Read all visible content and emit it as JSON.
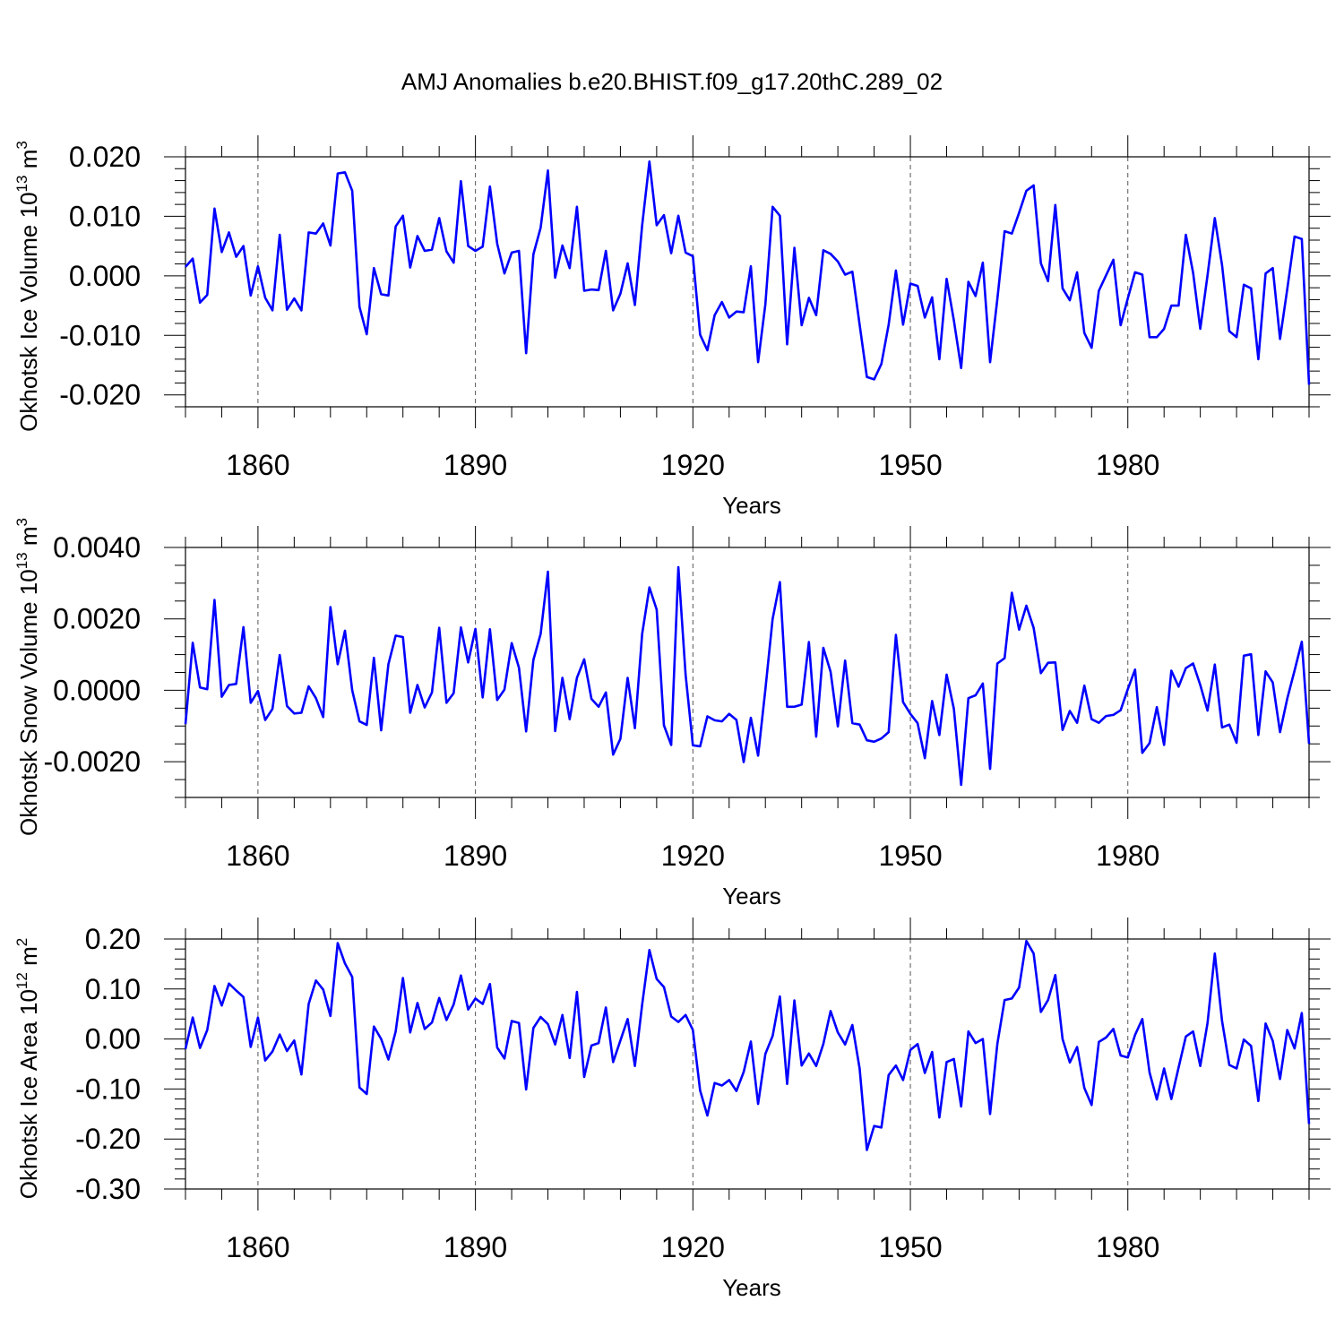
{
  "title": "AMJ Anomalies b.e20.BHIST.f09_g17.20thC.289_02",
  "series_color": "#0000ff",
  "chart_data": [
    {
      "type": "line",
      "name": "Okhotsk Ice Volume",
      "ylabel_main": "Okhotsk Ice Volume 10",
      "ylabel_exp": "13",
      "ylabel_unit": " m",
      "ylabel_unit_exp": "3",
      "xlabel": "Years",
      "xlim": [
        1850,
        2005
      ],
      "ylim": [
        -0.022,
        0.02
      ],
      "yticks": [
        0.02,
        0.01,
        0.0,
        -0.01,
        -0.02
      ],
      "yticklabels": [
        "0.020",
        "0.010",
        "0.000",
        "-0.010",
        "-0.020"
      ],
      "yminor": 0.002,
      "xticks": [
        1860,
        1890,
        1920,
        1950,
        1980
      ],
      "xticklabels": [
        "1860",
        "1890",
        "1920",
        "1950",
        "1980"
      ],
      "x_start": 1850,
      "values": [
        0.0015,
        0.0029,
        -0.0045,
        -0.0032,
        0.0113,
        0.004,
        0.0073,
        0.0032,
        0.005,
        -0.0033,
        0.0016,
        -0.0037,
        -0.0058,
        0.0069,
        -0.0057,
        -0.0038,
        -0.0058,
        0.0073,
        0.0071,
        0.0088,
        0.0051,
        0.0172,
        0.0174,
        0.0143,
        -0.0052,
        -0.0098,
        0.0013,
        -0.0031,
        -0.0033,
        0.0083,
        0.0101,
        0.0014,
        0.0067,
        0.0042,
        0.0044,
        0.0097,
        0.0041,
        0.0022,
        0.0159,
        0.005,
        0.0042,
        0.0049,
        0.015,
        0.0054,
        0.0004,
        0.0039,
        0.0042,
        -0.013,
        0.0036,
        0.0081,
        0.0177,
        -0.0003,
        0.0051,
        0.0013,
        0.0116,
        -0.0025,
        -0.0023,
        -0.0024,
        0.0042,
        -0.0058,
        -0.003,
        0.0021,
        -0.0049,
        0.0085,
        0.0192,
        0.0085,
        0.0102,
        0.0038,
        0.0101,
        0.0039,
        0.0033,
        -0.0099,
        -0.0125,
        -0.0066,
        -0.0044,
        -0.007,
        -0.006,
        -0.0061,
        0.0016,
        -0.0145,
        -0.0048,
        0.0116,
        0.0101,
        -0.0115,
        0.0047,
        -0.0083,
        -0.0037,
        -0.0066,
        0.0043,
        0.0037,
        0.0024,
        0.0002,
        0.0007,
        -0.0082,
        -0.017,
        -0.0174,
        -0.0148,
        -0.0082,
        0.0009,
        -0.0082,
        -0.0013,
        -0.0017,
        -0.007,
        -0.0036,
        -0.014,
        -0.0005,
        -0.0075,
        -0.0155,
        -0.001,
        -0.0034,
        0.0022,
        -0.0145,
        -0.0039,
        0.0075,
        0.0071,
        0.0106,
        0.0143,
        0.0152,
        0.0021,
        -0.0009,
        0.0119,
        -0.0021,
        -0.0041,
        0.0006,
        -0.0096,
        -0.0121,
        -0.0025,
        0.0001,
        0.0027,
        -0.0083,
        -0.0038,
        0.0006,
        0.0002,
        -0.0103,
        -0.0103,
        -0.0089,
        -0.005,
        -0.005,
        0.0069,
        0.0005,
        -0.0089,
        0.0001,
        0.0097,
        0.0018,
        -0.0093,
        -0.0103,
        -0.0015,
        -0.0021,
        -0.014,
        0.0004,
        0.0013,
        -0.0106,
        -0.0022,
        0.0066,
        0.0062,
        -0.0183
      ]
    },
    {
      "type": "line",
      "name": "Okhotsk Snow Volume",
      "ylabel_main": "Okhotsk Snow Volume 10",
      "ylabel_exp": "13",
      "ylabel_unit": " m",
      "ylabel_unit_exp": "3",
      "xlabel": "Years",
      "xlim": [
        1850,
        2005
      ],
      "ylim": [
        -0.003,
        0.004
      ],
      "yticks": [
        0.004,
        0.002,
        0.0,
        -0.002
      ],
      "yticklabels": [
        "0.0040",
        "0.0020",
        "0.0000",
        "-0.0020"
      ],
      "yminor": 0.0005,
      "xticks": [
        1860,
        1890,
        1920,
        1950,
        1980
      ],
      "xticklabels": [
        "1860",
        "1890",
        "1920",
        "1950",
        "1980"
      ],
      "x_start": 1850,
      "values": [
        -0.00095,
        0.00133,
        8e-05,
        3e-05,
        0.00253,
        -0.00018,
        0.00015,
        0.00018,
        0.00177,
        -0.00035,
        -2e-05,
        -0.00083,
        -0.00052,
        0.00099,
        -0.00044,
        -0.00065,
        -0.00063,
        0.00011,
        -0.00022,
        -0.00075,
        0.00233,
        0.00073,
        0.00167,
        0.0,
        -0.00087,
        -0.00097,
        0.00091,
        -0.00112,
        0.00073,
        0.00153,
        0.00149,
        -0.00063,
        0.00015,
        -0.00048,
        -6e-05,
        0.00175,
        -0.00035,
        -8e-05,
        0.00176,
        0.00078,
        0.00172,
        -0.0002,
        0.00171,
        -0.00027,
        2e-05,
        0.00132,
        0.00063,
        -0.00115,
        0.00085,
        0.00158,
        0.00332,
        -0.00114,
        0.00035,
        -0.00081,
        0.00035,
        0.00087,
        -0.00024,
        -0.00046,
        -6e-05,
        -0.0018,
        -0.00136,
        0.00035,
        -0.00106,
        0.00158,
        0.00288,
        0.00226,
        -0.00098,
        -0.00153,
        0.00345,
        0.00043,
        -0.00154,
        -0.00157,
        -0.00073,
        -0.00084,
        -0.00087,
        -0.00066,
        -0.00083,
        -0.00201,
        -0.00077,
        -0.00183,
        2e-05,
        0.002,
        0.00303,
        -0.00046,
        -0.00046,
        -0.0004,
        0.00135,
        -0.0013,
        0.00119,
        0.00052,
        -0.00101,
        0.00083,
        -0.00092,
        -0.00096,
        -0.0014,
        -0.00144,
        -0.00135,
        -0.00117,
        0.00155,
        -0.00033,
        -0.00066,
        -0.00092,
        -0.0019,
        -0.0003,
        -0.00125,
        0.00044,
        -0.00052,
        -0.00265,
        -0.00022,
        -0.00014,
        0.00019,
        -0.0022,
        0.00075,
        0.0009,
        0.00273,
        0.0017,
        0.00237,
        0.00175,
        0.00048,
        0.00077,
        0.00078,
        -0.00111,
        -0.00058,
        -0.00091,
        0.00013,
        -0.00081,
        -0.00091,
        -0.00072,
        -0.00069,
        -0.00056,
        3e-05,
        0.00058,
        -0.00175,
        -0.00148,
        -0.00047,
        -0.00153,
        0.00055,
        0.0001,
        0.00062,
        0.00075,
        0.00015,
        -0.00057,
        0.00072,
        -0.00104,
        -0.00096,
        -0.00147,
        0.00097,
        0.00101,
        -0.00125,
        0.00053,
        0.00022,
        -0.00117,
        -0.00023,
        0.00055,
        0.00136,
        -0.0015
      ]
    },
    {
      "type": "line",
      "name": "Okhotsk Ice Area",
      "ylabel_main": "Okhotsk Ice Area 10",
      "ylabel_exp": "12",
      "ylabel_unit": " m",
      "ylabel_unit_exp": "2",
      "xlabel": "Years",
      "xlim": [
        1850,
        2005
      ],
      "ylim": [
        -0.3,
        0.2
      ],
      "yticks": [
        0.2,
        0.1,
        0.0,
        -0.1,
        -0.2,
        -0.3
      ],
      "yticklabels": [
        "0.20",
        "0.10",
        "0.00",
        "-0.10",
        "-0.20",
        "-0.30"
      ],
      "yminor": 0.02,
      "xticks": [
        1860,
        1890,
        1920,
        1950,
        1980
      ],
      "xticklabels": [
        "1860",
        "1890",
        "1920",
        "1950",
        "1980"
      ],
      "x_start": 1850,
      "values": [
        -0.02,
        0.043,
        -0.018,
        0.018,
        0.106,
        0.067,
        0.111,
        0.097,
        0.084,
        -0.016,
        0.043,
        -0.043,
        -0.025,
        0.009,
        -0.024,
        -0.003,
        -0.071,
        0.07,
        0.117,
        0.099,
        0.046,
        0.192,
        0.151,
        0.124,
        -0.097,
        -0.11,
        0.025,
        0.0,
        -0.041,
        0.015,
        0.122,
        0.013,
        0.072,
        0.02,
        0.033,
        0.082,
        0.038,
        0.069,
        0.127,
        0.059,
        0.081,
        0.07,
        0.11,
        -0.017,
        -0.039,
        0.036,
        0.032,
        -0.101,
        0.022,
        0.044,
        0.03,
        -0.011,
        0.048,
        -0.038,
        0.094,
        -0.076,
        -0.013,
        -0.008,
        0.063,
        -0.046,
        -0.003,
        0.04,
        -0.054,
        0.069,
        0.178,
        0.12,
        0.104,
        0.045,
        0.034,
        0.048,
        0.018,
        -0.103,
        -0.153,
        -0.088,
        -0.093,
        -0.082,
        -0.104,
        -0.066,
        -0.005,
        -0.13,
        -0.03,
        0.006,
        0.085,
        -0.09,
        0.077,
        -0.053,
        -0.029,
        -0.054,
        -0.01,
        0.056,
        0.013,
        -0.011,
        0.028,
        -0.059,
        -0.222,
        -0.174,
        -0.177,
        -0.072,
        -0.053,
        -0.082,
        -0.022,
        -0.01,
        -0.068,
        -0.026,
        -0.157,
        -0.046,
        -0.04,
        -0.135,
        0.015,
        -0.008,
        0.0,
        -0.15,
        -0.01,
        0.078,
        0.081,
        0.103,
        0.196,
        0.171,
        0.054,
        0.078,
        0.128,
        0.0,
        -0.047,
        -0.016,
        -0.098,
        -0.132,
        -0.006,
        0.003,
        0.02,
        -0.033,
        -0.037,
        0.008,
        0.04,
        -0.067,
        -0.121,
        -0.059,
        -0.12,
        -0.057,
        0.005,
        0.015,
        -0.054,
        0.032,
        0.171,
        0.036,
        -0.052,
        -0.059,
        -0.001,
        -0.014,
        -0.124,
        0.031,
        -0.004,
        -0.08,
        0.018,
        -0.019,
        0.052,
        -0.17
      ]
    }
  ]
}
